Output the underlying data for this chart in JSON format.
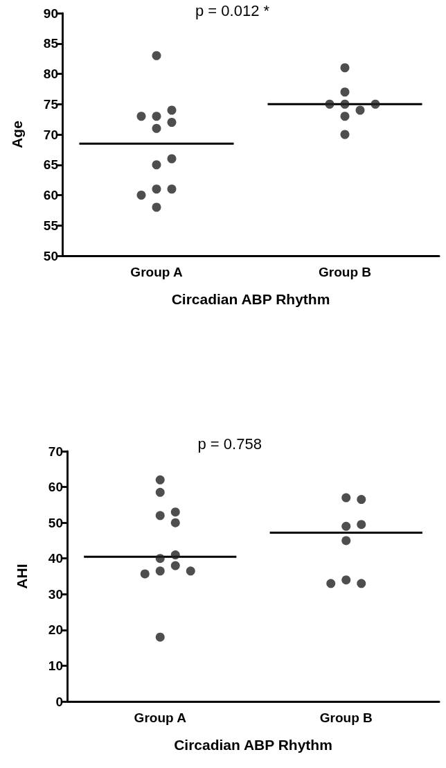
{
  "chart_data": [
    {
      "type": "scatter",
      "annotations": [
        "p = 0.012 *"
      ],
      "xlabel": "Circadian ABP Rhythm",
      "ylabel": "Age",
      "categories": [
        "Group A",
        "Group B"
      ],
      "ylim": [
        50,
        90
      ],
      "yticks": [
        50,
        55,
        60,
        65,
        70,
        75,
        80,
        85,
        90
      ],
      "grid": false,
      "marker": "circle",
      "series": [
        {
          "color": "#222222",
          "x": [
            "Group A",
            "Group A",
            "Group A",
            "Group A",
            "Group A",
            "Group A",
            "Group A",
            "Group A",
            "Group A",
            "Group A",
            "Group A",
            "Group A"
          ],
          "values": [
            83,
            73,
            72,
            74,
            73,
            71,
            65,
            66,
            61,
            61,
            60,
            58
          ]
        },
        {
          "color": "#222222",
          "x": [
            "Group B",
            "Group B",
            "Group B",
            "Group B",
            "Group B",
            "Group B",
            "Group B",
            "Group B"
          ],
          "values": [
            81,
            77,
            75,
            74,
            73,
            75,
            75,
            70
          ]
        }
      ],
      "ref_lines": [
        {
          "axis": "y",
          "value": 68.5,
          "color": "#000000",
          "line_style": "solid"
        },
        {
          "axis": "y",
          "value": 75,
          "color": "#000000",
          "line_style": "solid"
        }
      ]
    },
    {
      "type": "scatter",
      "annotations": [
        "p = 0.758"
      ],
      "xlabel": "Circadian ABP Rhythm",
      "ylabel": "AHI",
      "categories": [
        "Group A",
        "Group B"
      ],
      "ylim": [
        0,
        70
      ],
      "yticks": [
        0,
        10,
        20,
        30,
        40,
        50,
        60,
        70
      ],
      "grid": false,
      "marker": "circle",
      "series": [
        {
          "color": "#222222",
          "x": [
            "Group A",
            "Group A",
            "Group A",
            "Group A",
            "Group A",
            "Group A",
            "Group A",
            "Group A",
            "Group A",
            "Group A",
            "Group A",
            "Group A"
          ],
          "values": [
            62,
            58.5,
            52,
            50,
            53,
            40,
            41,
            38,
            36.5,
            35.7,
            36.5,
            18
          ]
        },
        {
          "color": "#222222",
          "x": [
            "Group B",
            "Group B",
            "Group B",
            "Group B",
            "Group B",
            "Group B",
            "Group B",
            "Group B"
          ],
          "values": [
            57,
            56.5,
            49,
            49.5,
            45,
            34,
            33,
            33
          ]
        }
      ],
      "ref_lines": [
        {
          "axis": "y",
          "value": 40.5,
          "color": "#000000",
          "line_style": "solid"
        },
        {
          "axis": "y",
          "value": 47.2,
          "color": "#000000",
          "line_style": "solid"
        }
      ]
    }
  ]
}
